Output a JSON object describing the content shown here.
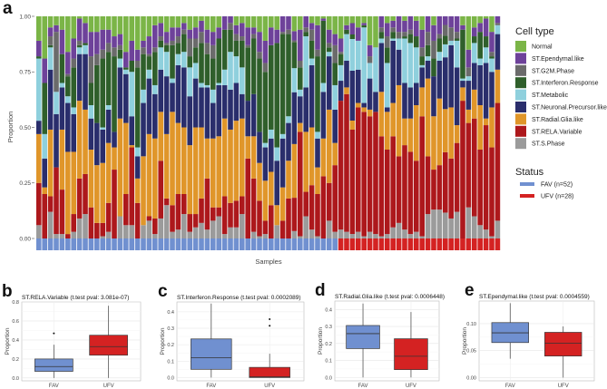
{
  "figure": {
    "letters": [
      "a",
      "b",
      "c",
      "d",
      "e"
    ]
  },
  "colors": {
    "Normal": "#7bb547",
    "ST.Ependymal.like": "#6e429a",
    "ST.G2M.Phase": "#6b6b6b",
    "ST.Interferon.Response": "#2f5f2b",
    "ST.Metabolic": "#8fd0dd",
    "ST.Neuronal.Precursor.like": "#2a2e6c",
    "ST.Radial.Glia.like": "#e0962a",
    "ST.RELA.Variable": "#ad181c",
    "ST.S.Phase": "#9b9b9b",
    "FAV": "#7090d0",
    "UFV": "#d42222"
  },
  "chart_data": [
    {
      "type": "bar",
      "stacked": true,
      "panel": "a",
      "xlabel": "Samples",
      "ylabel": "Proportion",
      "ylim": [
        0,
        1
      ],
      "yticks": [
        "0.00",
        "0.25",
        "0.50",
        "0.75",
        "1.00"
      ],
      "legend_cell_title": "Cell type",
      "legend_status_title": "Status",
      "legend_placement": "right",
      "stack_order_bottom_to_top": [
        "ST.S.Phase",
        "ST.RELA.Variable",
        "ST.Radial.Glia.like",
        "ST.Neuronal.Precursor.like",
        "ST.Metabolic",
        "ST.Interferon.Response",
        "ST.G2M.Phase",
        "ST.Ependymal.like",
        "Normal"
      ],
      "legend_cell_types": [
        "Normal",
        "ST.Ependymal.like",
        "ST.G2M.Phase",
        "ST.Interferon.Response",
        "ST.Metabolic",
        "ST.Neuronal.Precursor.like",
        "ST.Radial.Glia.like",
        "ST.RELA.Variable",
        "ST.S.Phase"
      ],
      "status_legend": [
        {
          "key": "FAV",
          "label": "FAV (n=52)"
        },
        {
          "key": "UFV",
          "label": "UFV (n=28)"
        }
      ],
      "status_counts": {
        "FAV": 52,
        "UFV": 28
      },
      "samples": [
        [
          6,
          19,
          22,
          6,
          28,
          1,
          0,
          7,
          11
        ],
        [
          0,
          20,
          3,
          13,
          11,
          23,
          0,
          11,
          19
        ],
        [
          12,
          7,
          30,
          27,
          10,
          1,
          4,
          4,
          5
        ],
        [
          2,
          30,
          0,
          24,
          10,
          0,
          27,
          3,
          4
        ],
        [
          2,
          20,
          27,
          19,
          2,
          13,
          0,
          11,
          6
        ],
        [
          0,
          2,
          37,
          22,
          3,
          9,
          1,
          10,
          16
        ],
        [
          3,
          8,
          28,
          17,
          3,
          18,
          4,
          9,
          10
        ],
        [
          9,
          18,
          35,
          21,
          3,
          1,
          2,
          10,
          1
        ],
        [
          11,
          18,
          29,
          25,
          4,
          1,
          0,
          9,
          3
        ],
        [
          0,
          14,
          26,
          14,
          6,
          10,
          12,
          11,
          7
        ],
        [
          0,
          7,
          26,
          19,
          0,
          26,
          5,
          10,
          7
        ],
        [
          1,
          6,
          27,
          15,
          1,
          31,
          4,
          9,
          6
        ],
        [
          3,
          13,
          27,
          15,
          2,
          24,
          4,
          6,
          6
        ],
        [
          0,
          31,
          10,
          7,
          0,
          34,
          4,
          5,
          9
        ],
        [
          10,
          0,
          44,
          23,
          4,
          4,
          2,
          5,
          8
        ],
        [
          6,
          14,
          32,
          22,
          2,
          1,
          0,
          7,
          16
        ],
        [
          6,
          35,
          1,
          13,
          20,
          5,
          0,
          9,
          11
        ],
        [
          0,
          16,
          11,
          10,
          4,
          36,
          3,
          5,
          15
        ],
        [
          6,
          0,
          31,
          24,
          6,
          16,
          3,
          3,
          11
        ],
        [
          8,
          2,
          37,
          25,
          4,
          6,
          1,
          8,
          9
        ],
        [
          2,
          7,
          36,
          20,
          4,
          15,
          2,
          10,
          4
        ],
        [
          9,
          26,
          22,
          19,
          10,
          3,
          2,
          6,
          3
        ],
        [
          15,
          3,
          29,
          26,
          11,
          3,
          1,
          5,
          7
        ],
        [
          3,
          12,
          42,
          13,
          2,
          15,
          2,
          6,
          5
        ],
        [
          4,
          16,
          32,
          26,
          5,
          5,
          3,
          4,
          5
        ],
        [
          11,
          9,
          30,
          27,
          7,
          8,
          2,
          3,
          3
        ],
        [
          3,
          8,
          31,
          22,
          13,
          5,
          8,
          4,
          6
        ],
        [
          5,
          6,
          39,
          22,
          7,
          7,
          4,
          5,
          5
        ],
        [
          7,
          11,
          32,
          18,
          2,
          18,
          5,
          5,
          2
        ],
        [
          4,
          23,
          18,
          23,
          1,
          14,
          5,
          6,
          6
        ],
        [
          8,
          6,
          31,
          16,
          6,
          14,
          6,
          6,
          7
        ],
        [
          10,
          4,
          32,
          23,
          1,
          20,
          0,
          5,
          5
        ],
        [
          2,
          17,
          35,
          15,
          7,
          18,
          0,
          6,
          0
        ],
        [
          5,
          11,
          33,
          18,
          17,
          10,
          3,
          3,
          0
        ],
        [
          5,
          12,
          36,
          17,
          12,
          7,
          3,
          4,
          4
        ],
        [
          11,
          8,
          35,
          11,
          12,
          12,
          2,
          6,
          3
        ],
        [
          0,
          36,
          10,
          16,
          0,
          24,
          1,
          8,
          5
        ],
        [
          3,
          24,
          19,
          19,
          0,
          25,
          2,
          3,
          5
        ],
        [
          1,
          16,
          17,
          14,
          0,
          33,
          3,
          9,
          7
        ],
        [
          2,
          6,
          18,
          15,
          2,
          32,
          4,
          10,
          11
        ],
        [
          0,
          15,
          15,
          15,
          4,
          38,
          0,
          8,
          5
        ],
        [
          6,
          0,
          9,
          20,
          6,
          47,
          0,
          6,
          6
        ],
        [
          0,
          8,
          15,
          22,
          2,
          45,
          1,
          7,
          0
        ],
        [
          0,
          18,
          17,
          17,
          3,
          37,
          2,
          6,
          0
        ],
        [
          4,
          18,
          29,
          28,
          13,
          14,
          1,
          5,
          8
        ],
        [
          1,
          47,
          4,
          12,
          3,
          10,
          3,
          14,
          6
        ],
        [
          10,
          11,
          27,
          20,
          23,
          2,
          2,
          5,
          0
        ],
        [
          4,
          20,
          26,
          28,
          3,
          8,
          5,
          3,
          3
        ],
        [
          1,
          19,
          12,
          13,
          3,
          34,
          3,
          11,
          4
        ],
        [
          0,
          28,
          17,
          21,
          4,
          28,
          0,
          1,
          1
        ],
        [
          8,
          17,
          33,
          24,
          2,
          2,
          2,
          6,
          6
        ],
        [
          3,
          30,
          10,
          15,
          11,
          10,
          8,
          5,
          8
        ],
        [
          4,
          58,
          0,
          9,
          7,
          5,
          1,
          6,
          10
        ],
        [
          3,
          62,
          3,
          12,
          12,
          2,
          0,
          2,
          4
        ],
        [
          2,
          46,
          4,
          22,
          14,
          2,
          0,
          5,
          3
        ],
        [
          3,
          56,
          2,
          15,
          13,
          0,
          0,
          6,
          5
        ],
        [
          1,
          56,
          2,
          2,
          34,
          1,
          0,
          1,
          3
        ],
        [
          3,
          52,
          3,
          14,
          7,
          0,
          3,
          5,
          13
        ],
        [
          2,
          55,
          0,
          9,
          20,
          0,
          0,
          0,
          14
        ],
        [
          1,
          45,
          20,
          22,
          2,
          3,
          2,
          5,
          0
        ],
        [
          2,
          38,
          17,
          2,
          20,
          7,
          5,
          6,
          3
        ],
        [
          5,
          41,
          15,
          28,
          1,
          3,
          2,
          3,
          2
        ],
        [
          7,
          30,
          32,
          16,
          5,
          0,
          3,
          7,
          0
        ],
        [
          4,
          38,
          12,
          16,
          20,
          1,
          2,
          5,
          2
        ],
        [
          2,
          37,
          15,
          14,
          20,
          4,
          2,
          6,
          0
        ],
        [
          3,
          32,
          25,
          10,
          16,
          5,
          0,
          7,
          2
        ],
        [
          1,
          54,
          13,
          9,
          1,
          4,
          4,
          8,
          6
        ],
        [
          11,
          26,
          35,
          8,
          2,
          5,
          6,
          7,
          0
        ],
        [
          13,
          18,
          24,
          18,
          0,
          8,
          8,
          7,
          4
        ],
        [
          13,
          20,
          30,
          17,
          4,
          6,
          2,
          8,
          0
        ],
        [
          12,
          28,
          20,
          24,
          6,
          4,
          5,
          4,
          0
        ],
        [
          9,
          27,
          23,
          28,
          2,
          0,
          6,
          5,
          0
        ],
        [
          12,
          31,
          8,
          26,
          12,
          1,
          3,
          7,
          0
        ],
        [
          0,
          62,
          6,
          3,
          1,
          22,
          0,
          2,
          4
        ],
        [
          14,
          38,
          6,
          13,
          2,
          0,
          4,
          8,
          15
        ],
        [
          10,
          44,
          13,
          12,
          9,
          3,
          0,
          4,
          5
        ],
        [
          6,
          34,
          20,
          18,
          3,
          12,
          0,
          4,
          3
        ],
        [
          4,
          47,
          3,
          25,
          7,
          5,
          0,
          8,
          1
        ],
        [
          1,
          40,
          18,
          16,
          6,
          1,
          2,
          9,
          7
        ],
        [
          8,
          53,
          15,
          16,
          4,
          0,
          1,
          3,
          0
        ]
      ],
      "status": "first 52 FAV, last 28 UFV"
    },
    {
      "type": "box",
      "panel": "b",
      "title": "ST.RELA.Variable (t.test pval: 3.081e-07)",
      "ylabel": "Proportion",
      "ylim": [
        -0.03,
        0.8
      ],
      "yticks": [
        0,
        0.2,
        0.4,
        0.6,
        0.8
      ],
      "ytick_labels": [
        "0.0",
        "0.2",
        "0.4",
        "0.6",
        "0.8"
      ],
      "categories": [
        "FAV",
        "UFV"
      ],
      "boxes": [
        {
          "min": 0.0,
          "q1": 0.07,
          "median": 0.12,
          "q3": 0.2,
          "max": 0.35,
          "outliers": [
            0.47
          ]
        },
        {
          "min": 0.0,
          "q1": 0.24,
          "median": 0.33,
          "q3": 0.45,
          "max": 0.76,
          "outliers": []
        }
      ]
    },
    {
      "type": "box",
      "panel": "c",
      "title": "ST.Interferon.Response (t.test pval: 0.0002089)",
      "ylabel": "Proportion",
      "ylim": [
        -0.02,
        0.46
      ],
      "yticks": [
        0,
        0.1,
        0.2,
        0.3,
        0.4
      ],
      "ytick_labels": [
        "0.0",
        "0.1",
        "0.2",
        "0.3",
        "0.4"
      ],
      "categories": [
        "FAV",
        "UFV"
      ],
      "boxes": [
        {
          "min": 0.0,
          "q1": 0.05,
          "median": 0.12,
          "q3": 0.235,
          "max": 0.45,
          "outliers": []
        },
        {
          "min": 0.0,
          "q1": 0.0,
          "median": 0.004,
          "q3": 0.062,
          "max": 0.145,
          "outliers": [
            0.315,
            0.355
          ]
        }
      ]
    },
    {
      "type": "box",
      "panel": "d",
      "title": "ST.Radial.Glia.like (t.test pval: 0.0006448)",
      "ylabel": "Proportion",
      "ylim": [
        -0.02,
        0.45
      ],
      "yticks": [
        0,
        0.1,
        0.2,
        0.3,
        0.4
      ],
      "ytick_labels": [
        "0.0",
        "0.1",
        "0.2",
        "0.3",
        "0.4"
      ],
      "categories": [
        "FAV",
        "UFV"
      ],
      "boxes": [
        {
          "min": 0.0,
          "q1": 0.17,
          "median": 0.258,
          "q3": 0.306,
          "max": 0.435,
          "outliers": []
        },
        {
          "min": 0.0,
          "q1": 0.046,
          "median": 0.125,
          "q3": 0.228,
          "max": 0.385,
          "outliers": []
        }
      ]
    },
    {
      "type": "box",
      "panel": "e",
      "title": "ST.Ependymal.like (t.test pval: 0.0004559)",
      "ylabel": "Proportion",
      "ylim": [
        -0.006,
        0.142
      ],
      "yticks": [
        0,
        0.05,
        0.1
      ],
      "ytick_labels": [
        "0.00",
        "0.05",
        "0.10"
      ],
      "categories": [
        "FAV",
        "UFV"
      ],
      "boxes": [
        {
          "min": 0.035,
          "q1": 0.065,
          "median": 0.083,
          "q3": 0.102,
          "max": 0.138,
          "outliers": []
        },
        {
          "min": 0.0,
          "q1": 0.04,
          "median": 0.064,
          "q3": 0.084,
          "max": 0.095,
          "outliers": []
        }
      ]
    }
  ]
}
